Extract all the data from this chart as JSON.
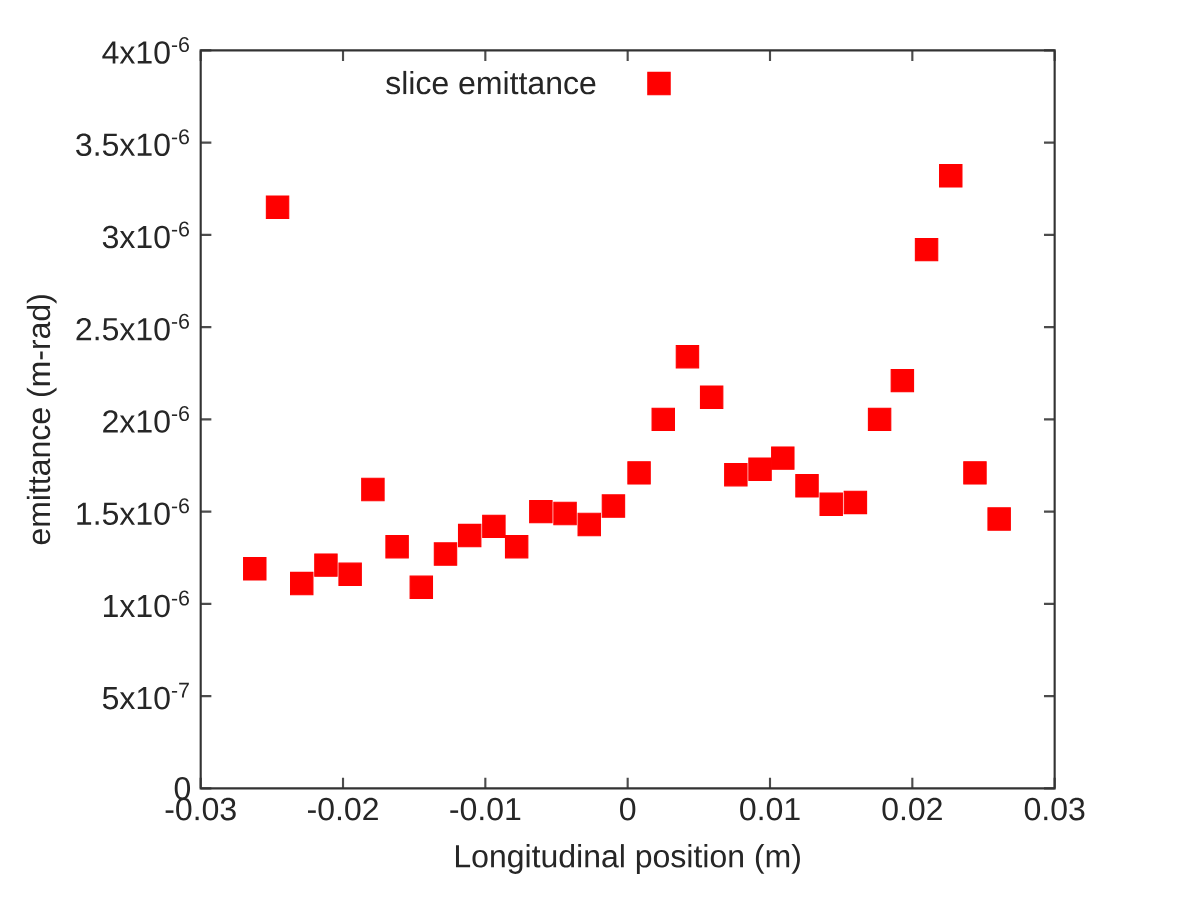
{
  "chart_data": {
    "type": "scatter",
    "title": "slice emittance",
    "xlabel": "Longitudinal position (m)",
    "ylabel": "emittance (m-rad)",
    "x": [
      -0.0262,
      -0.0246,
      -0.0229,
      -0.0212,
      -0.0195,
      -0.0179,
      -0.0162,
      -0.0145,
      -0.0128,
      -0.0111,
      -0.0094,
      -0.0078,
      -0.0061,
      -0.0044,
      -0.0027,
      -0.001,
      0.0008,
      0.0022,
      0.0025,
      0.0042,
      0.0059,
      0.0076,
      0.0093,
      0.0109,
      0.0126,
      0.0143,
      0.016,
      0.0177,
      0.0193,
      0.021,
      0.0227,
      0.0244,
      0.0261
    ],
    "values": [
      1.19e-06,
      3.15e-06,
      1.11e-06,
      1.21e-06,
      1.16e-06,
      1.62e-06,
      1.31e-06,
      1.09e-06,
      1.27e-06,
      1.37e-06,
      1.42e-06,
      1.31e-06,
      1.5e-06,
      1.49e-06,
      1.43e-06,
      1.53e-06,
      1.71e-06,
      3.82e-06,
      2e-06,
      2.34e-06,
      2.12e-06,
      1.7e-06,
      1.73e-06,
      1.79e-06,
      1.64e-06,
      1.54e-06,
      1.55e-06,
      2e-06,
      2.21e-06,
      2.92e-06,
      3.32e-06,
      1.71e-06,
      1.46e-06
    ],
    "color": "#ff0000",
    "marker": "square",
    "xlim": [
      -0.03,
      0.03
    ],
    "xticks": [
      -0.03,
      -0.02,
      -0.01,
      0,
      0.01,
      0.02,
      0.03
    ],
    "ylim": [
      0,
      4e-06
    ],
    "yticks": [
      0,
      {
        "value": 5e-07,
        "label": "5x10$^{-7}$"
      },
      {
        "value": 1e-06,
        "label": "1x10$^{-6}$"
      },
      {
        "value": 1.5e-06,
        "label": "1.5x10$^{-6}$"
      },
      {
        "value": 2e-06,
        "label": "2x10$^{-6}$"
      },
      {
        "value": 2.5e-06,
        "label": "2.5x10$^{-6}$"
      },
      {
        "value": 3e-06,
        "label": "3x10$^{-6}$"
      },
      {
        "value": 3.5e-06,
        "label": "3.5x10$^{-6}$"
      },
      {
        "value": 4e-06,
        "label": "4x10$^{-6}$"
      }
    ],
    "grid": false
  }
}
